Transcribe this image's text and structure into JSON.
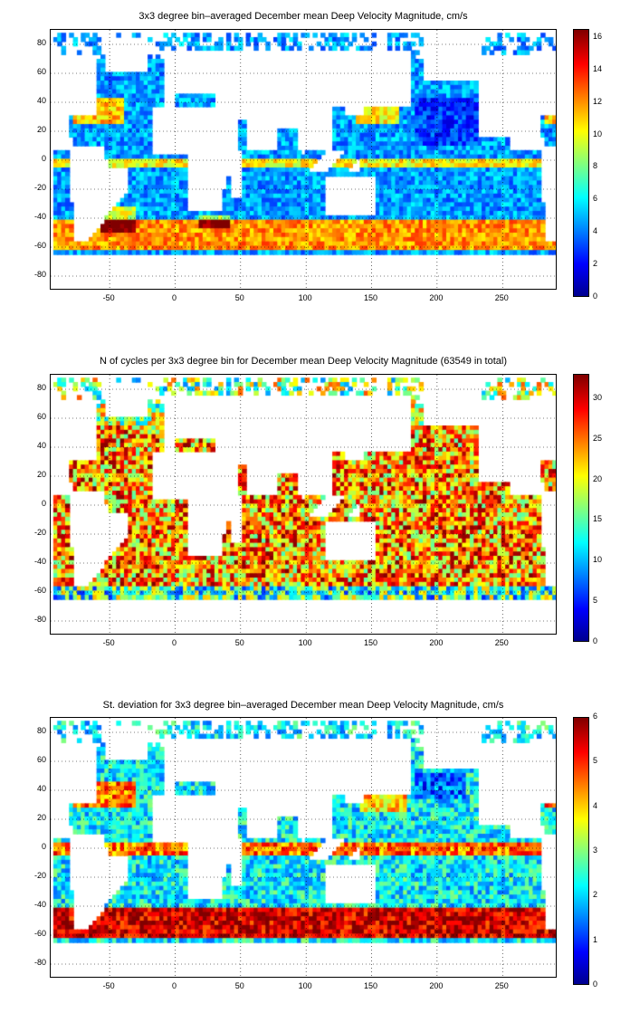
{
  "panels": [
    {
      "title": "3x3 degree bin–averaged December mean Deep Velocity Magnitude, cm/s",
      "colorbar_ticks": [
        "0",
        "2",
        "4",
        "6",
        "8",
        "10",
        "12",
        "14",
        "16"
      ],
      "colorbar_max": 16.5,
      "palette_bias": "low"
    },
    {
      "title": "N of cycles per 3x3 degree bin for December mean Deep Velocity Magnitude (63549 in total)",
      "colorbar_ticks": [
        "0",
        "5",
        "10",
        "15",
        "20",
        "25",
        "30"
      ],
      "colorbar_max": 33,
      "palette_bias": "high"
    },
    {
      "title": "St. deviation for 3x3 degree bin–averaged December mean Deep Velocity Magnitude, cm/s",
      "colorbar_ticks": [
        "0",
        "1",
        "2",
        "3",
        "4",
        "5",
        "6"
      ],
      "colorbar_max": 6,
      "palette_bias": "mixed"
    }
  ],
  "axes": {
    "x_ticks": [
      "-50",
      "0",
      "50",
      "100",
      "150",
      "200",
      "250"
    ],
    "y_ticks": [
      "80",
      "60",
      "40",
      "20",
      "0",
      "-20",
      "-40",
      "-60",
      "-80"
    ],
    "x_range": [
      -95,
      292
    ],
    "y_range": [
      -90,
      90
    ],
    "grid": "dotted"
  },
  "colormap": "jet"
}
